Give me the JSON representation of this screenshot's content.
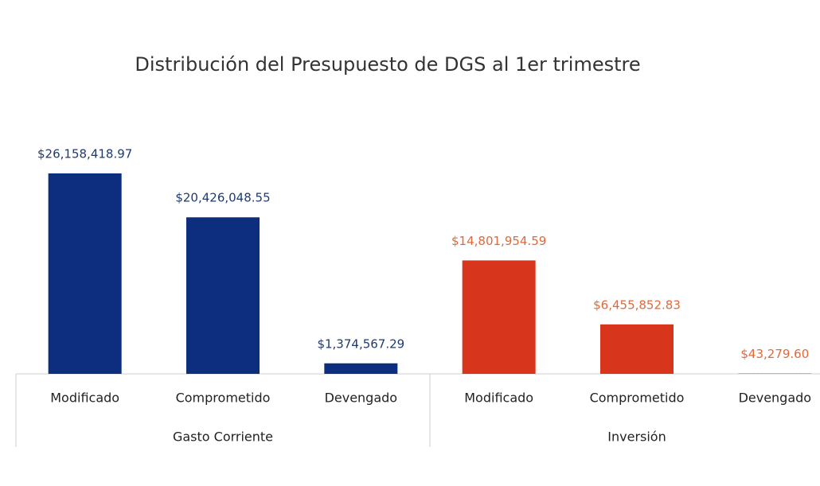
{
  "chart_data": {
    "type": "bar",
    "title": "Distribución del Presupuesto de DGS al 1er trimestre",
    "categories": [
      "Modificado",
      "Comprometido",
      "Devengado"
    ],
    "series": [
      {
        "name": "Gasto Corriente",
        "color": "#0d2e7e",
        "label_color": "#1f3a6e",
        "values": [
          26158418.97,
          20426048.55,
          1374567.29
        ],
        "value_labels": [
          "$26,158,418.97",
          "$20,426,048.55",
          "$1,374,567.29"
        ]
      },
      {
        "name": "Inversión",
        "color": "#d8361c",
        "label_color": "#e2683a",
        "values": [
          14801954.59,
          6455852.83,
          43279.6
        ],
        "value_labels": [
          "$14,801,954.59",
          "$6,455,852.83",
          "$43,279.60"
        ]
      }
    ]
  }
}
